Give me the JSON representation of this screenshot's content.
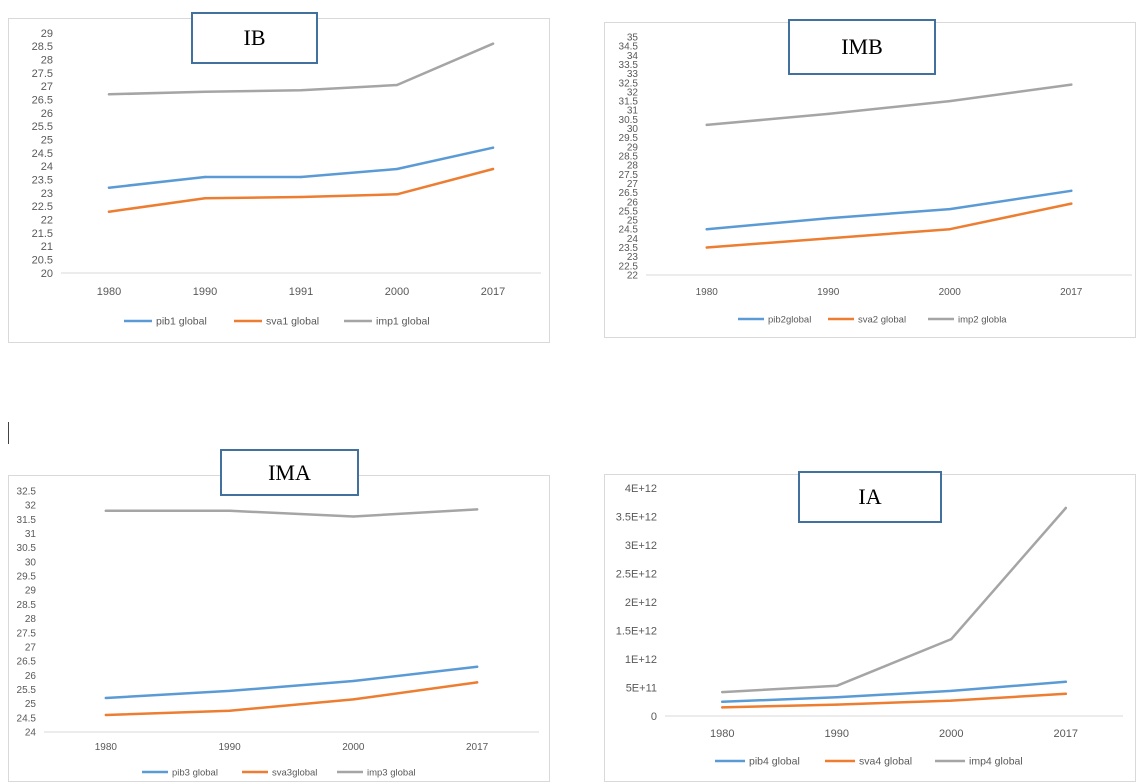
{
  "colors": {
    "pib": "#5b9bd5",
    "sva": "#ed7d31",
    "imp": "#a5a5a5"
  },
  "chart_data": [
    {
      "type": "line",
      "title": "IB",
      "categories": [
        "1980",
        "1990",
        "1991",
        "2000",
        "2017"
      ],
      "ylim": [
        20,
        29
      ],
      "ytick_labels": [
        "20",
        "20.5",
        "21",
        "21.5",
        "22",
        "22.5",
        "23",
        "23.5",
        "24",
        "24.5",
        "25",
        "25.5",
        "26",
        "26.5",
        "27",
        "27.5",
        "28",
        "28.5",
        "29"
      ],
      "series": [
        {
          "name": "pib1 global",
          "values": [
            23.2,
            23.6,
            23.6,
            23.9,
            24.7
          ]
        },
        {
          "name": "sva1 global",
          "values": [
            22.3,
            22.8,
            22.85,
            22.95,
            23.9
          ]
        },
        {
          "name": "imp1 global",
          "values": [
            26.7,
            26.8,
            26.85,
            27.05,
            28.6
          ]
        }
      ],
      "legend": "bottom",
      "grid": false
    },
    {
      "type": "line",
      "title": "IMB",
      "categories": [
        "1980",
        "1990",
        "2000",
        "2017"
      ],
      "ylim": [
        22,
        35
      ],
      "ytick_labels": [
        "22",
        "22.5",
        "23",
        "23.5",
        "24",
        "24.5",
        "25",
        "25.5",
        "26",
        "26.5",
        "27",
        "27.5",
        "28",
        "28.5",
        "29",
        "29.5",
        "30",
        "30.5",
        "31",
        "31.5",
        "32",
        "32.5",
        "33",
        "33.5",
        "34",
        "34.5",
        "35"
      ],
      "series": [
        {
          "name": "pib2global",
          "values": [
            24.5,
            25.1,
            25.6,
            26.6
          ]
        },
        {
          "name": "sva2 global",
          "values": [
            23.5,
            24.0,
            24.5,
            25.9
          ]
        },
        {
          "name": "imp2 globla",
          "values": [
            30.2,
            30.8,
            31.5,
            32.4
          ]
        }
      ],
      "legend": "bottom",
      "grid": false
    },
    {
      "type": "line",
      "title": "IMA",
      "categories": [
        "1980",
        "1990",
        "2000",
        "2017"
      ],
      "ylim": [
        24,
        32.5
      ],
      "ytick_labels": [
        "24",
        "24.5",
        "25",
        "25.5",
        "26",
        "26.5",
        "27",
        "27.5",
        "28",
        "28.5",
        "29",
        "29.5",
        "30",
        "30.5",
        "31",
        "31.5",
        "32",
        "32.5"
      ],
      "series": [
        {
          "name": "pib3 global",
          "values": [
            25.2,
            25.45,
            25.8,
            26.3
          ]
        },
        {
          "name": "sva3global",
          "values": [
            24.6,
            24.75,
            25.15,
            25.75
          ]
        },
        {
          "name": "imp3 global",
          "values": [
            31.8,
            31.8,
            31.6,
            31.85
          ]
        }
      ],
      "legend": "bottom",
      "grid": false
    },
    {
      "type": "line",
      "title": "IA",
      "categories": [
        "1980",
        "1990",
        "2000",
        "2017"
      ],
      "ylim": [
        0,
        4000000000000
      ],
      "ytick_labels": [
        "0",
        "5E+11",
        "1E+12",
        "1.5E+12",
        "2E+12",
        "2.5E+12",
        "3E+12",
        "3.5E+12",
        "4E+12"
      ],
      "series": [
        {
          "name": "pib4 global",
          "values": [
            250000000000,
            330000000000,
            440000000000,
            600000000000
          ]
        },
        {
          "name": "sva4 global",
          "values": [
            150000000000,
            200000000000,
            270000000000,
            390000000000
          ]
        },
        {
          "name": "imp4 global",
          "values": [
            420000000000,
            530000000000,
            1350000000000,
            3650000000000
          ]
        }
      ],
      "legend": "bottom",
      "grid": false
    }
  ]
}
